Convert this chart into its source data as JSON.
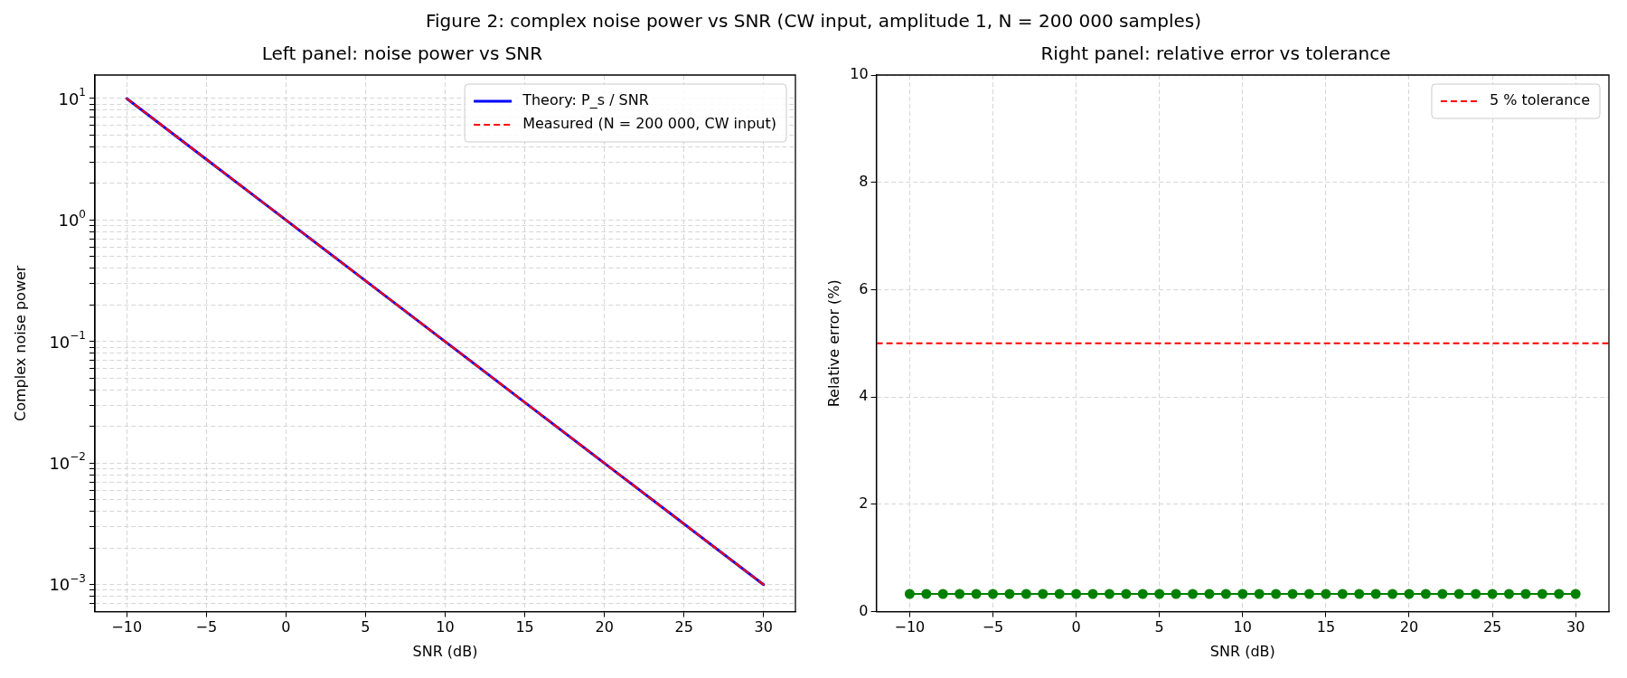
{
  "chart_data": [
    {
      "type": "line",
      "title": "Left panel: noise power vs SNR",
      "annotations": [
        "Figure 2: complex noise power vs SNR (CW input, amplitude 1, N = 200 000 samples)"
      ],
      "xlabel": "SNR (dB)",
      "ylabel": "Complex noise power",
      "log": "y",
      "grid": true,
      "legend": "top right",
      "marker": "none",
      "xlim": [
        -12,
        32
      ],
      "xticks": [
        -10,
        -5,
        0,
        5,
        10,
        15,
        20,
        25,
        30
      ],
      "ylim": [
        0.00064,
        15.6
      ],
      "yticks": [
        {
          "value": 0.0007,
          "label": null
        },
        {
          "value": 0.0008,
          "label": null
        },
        {
          "value": 0.0009,
          "label": null
        },
        {
          "value": 0.001,
          "label": "10$^{−3}$"
        },
        {
          "value": 0.002,
          "label": null
        },
        {
          "value": 0.003,
          "label": null
        },
        {
          "value": 0.004,
          "label": null
        },
        {
          "value": 0.005,
          "label": null
        },
        {
          "value": 0.006,
          "label": null
        },
        {
          "value": 0.007,
          "label": null
        },
        {
          "value": 0.008,
          "label": null
        },
        {
          "value": 0.009,
          "label": null
        },
        {
          "value": 0.01,
          "label": "10$^{−2}$"
        },
        {
          "value": 0.02,
          "label": null
        },
        {
          "value": 0.03,
          "label": null
        },
        {
          "value": 0.04,
          "label": null
        },
        {
          "value": 0.05,
          "label": null
        },
        {
          "value": 0.06,
          "label": null
        },
        {
          "value": 0.07,
          "label": null
        },
        {
          "value": 0.08,
          "label": null
        },
        {
          "value": 0.09,
          "label": null
        },
        {
          "value": 0.1,
          "label": "10$^{−1}$"
        },
        {
          "value": 0.2,
          "label": null
        },
        {
          "value": 0.3,
          "label": null
        },
        {
          "value": 0.4,
          "label": null
        },
        {
          "value": 0.5,
          "label": null
        },
        {
          "value": 0.6,
          "label": null
        },
        {
          "value": 0.7,
          "label": null
        },
        {
          "value": 0.8,
          "label": null
        },
        {
          "value": 0.9,
          "label": null
        },
        {
          "value": 1,
          "label": "10$^{0}$"
        },
        {
          "value": 2,
          "label": null
        },
        {
          "value": 3,
          "label": null
        },
        {
          "value": 4,
          "label": null
        },
        {
          "value": 5,
          "label": null
        },
        {
          "value": 6,
          "label": null
        },
        {
          "value": 7,
          "label": null
        },
        {
          "value": 8,
          "label": null
        },
        {
          "value": 9,
          "label": null
        },
        {
          "value": 10,
          "label": "10$^{1}$"
        }
      ],
      "x": [
        -10,
        -5,
        0,
        5,
        10,
        15,
        20,
        25,
        30
      ],
      "series": [
        {
          "name": "Theory: P_s / SNR",
          "color": "#0000ff",
          "line_style": "solid",
          "values": [
            10,
            3.162,
            1,
            0.3162,
            0.1,
            0.03162,
            0.01,
            0.003162,
            0.001
          ]
        },
        {
          "name": "Measured (N = 200 000, CW input)",
          "color": "#ff0000",
          "line_style": "dashed",
          "values": [
            10,
            3.162,
            1,
            0.3162,
            0.1,
            0.03162,
            0.01,
            0.003162,
            0.001
          ]
        }
      ]
    },
    {
      "type": "line",
      "title": "Right panel: relative error vs tolerance",
      "xlabel": "SNR (dB)",
      "ylabel": "Relative error (%)",
      "grid": true,
      "legend": "top right",
      "marker": "circle",
      "xlim": [
        -12,
        32
      ],
      "xticks": [
        -10,
        -5,
        0,
        5,
        10,
        15,
        20,
        25,
        30
      ],
      "ylim": [
        0,
        10
      ],
      "yticks": [
        0,
        2,
        4,
        6,
        8,
        10
      ],
      "x": [
        -10,
        -9,
        -8,
        -7,
        -6,
        -5,
        -4,
        -3,
        -2,
        -1,
        0,
        1,
        2,
        3,
        4,
        5,
        6,
        7,
        8,
        9,
        10,
        11,
        12,
        13,
        14,
        15,
        16,
        17,
        18,
        19,
        20,
        21,
        22,
        23,
        24,
        25,
        26,
        27,
        28,
        29,
        30
      ],
      "series": [
        {
          "color": "#008000",
          "line_style": "solid",
          "values": [
            0.33,
            0.33,
            0.33,
            0.33,
            0.33,
            0.33,
            0.33,
            0.33,
            0.33,
            0.33,
            0.33,
            0.33,
            0.33,
            0.33,
            0.33,
            0.33,
            0.33,
            0.33,
            0.33,
            0.33,
            0.33,
            0.33,
            0.33,
            0.33,
            0.33,
            0.33,
            0.33,
            0.33,
            0.33,
            0.33,
            0.33,
            0.33,
            0.33,
            0.33,
            0.33,
            0.33,
            0.33,
            0.33,
            0.33,
            0.33,
            0.33
          ]
        }
      ],
      "ref_lines": [
        {
          "axis": "y",
          "value": 5,
          "label": "5 % tolerance",
          "color": "#ff0000",
          "line_style": "dashed"
        }
      ]
    }
  ]
}
